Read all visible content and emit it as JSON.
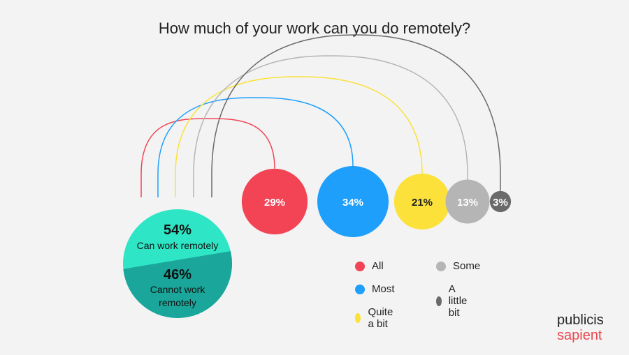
{
  "chart_data": {
    "type": "bubble",
    "title": "How much of your work can you do remotely?",
    "split": {
      "parts": [
        {
          "pct": 54,
          "label": "54%",
          "text": "Can work remotely",
          "color": "#2ee6c5"
        },
        {
          "pct": 46,
          "label": "46%",
          "text": "Cannot work remotely",
          "color": "#1aa69a"
        }
      ]
    },
    "breakdown": [
      {
        "name": "All",
        "value": 29,
        "label": "29%",
        "color": "#f24455"
      },
      {
        "name": "Most",
        "value": 34,
        "label": "34%",
        "color": "#1e9ffc"
      },
      {
        "name": "Quite a bit",
        "value": 21,
        "label": "21%",
        "color": "#fbe13a"
      },
      {
        "name": "Some",
        "value": 13,
        "label": "13%",
        "color": "#b5b5b5"
      },
      {
        "name": "A little bit",
        "value": 3,
        "label": "3%",
        "color": "#6a6a6a"
      }
    ]
  },
  "brand": {
    "line1": "publicis",
    "line2": "sapient"
  }
}
